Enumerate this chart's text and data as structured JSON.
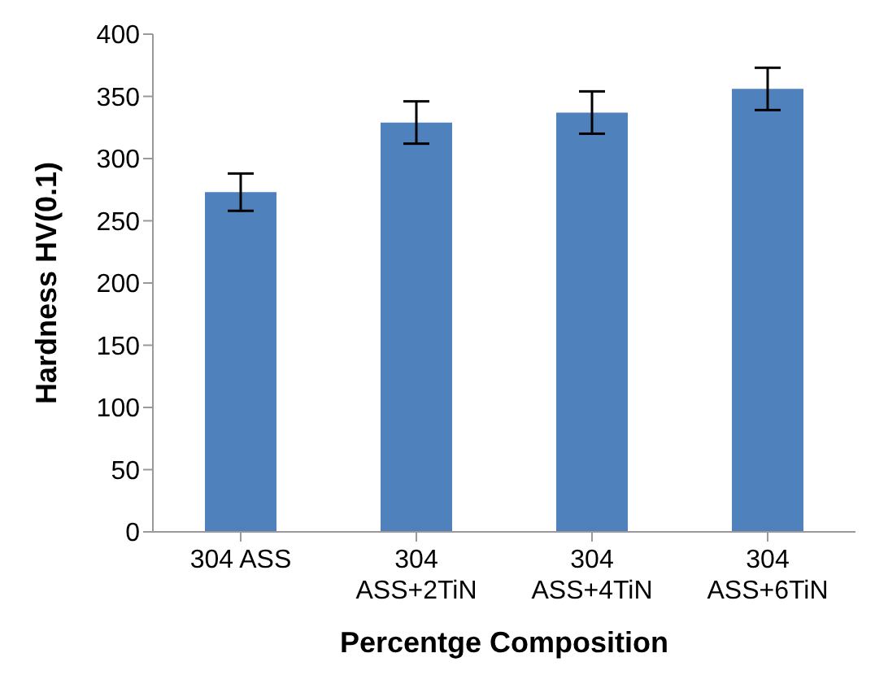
{
  "chart_data": {
    "type": "bar",
    "xlabel": "Percentge Composition",
    "ylabel": "Hardness HV(0.1)",
    "categories": [
      "304 ASS",
      "304 ASS+2TiN",
      "304 ASS+4TiN",
      "304 ASS+6TiN"
    ],
    "values": [
      273,
      329,
      337,
      356
    ],
    "errors": [
      15,
      17,
      17,
      17
    ],
    "color": "#4f81bd",
    "ylim": [
      0,
      400
    ],
    "yticks": [
      0,
      50,
      100,
      150,
      200,
      250,
      300,
      350,
      400
    ],
    "grid": false,
    "legend": false
  }
}
